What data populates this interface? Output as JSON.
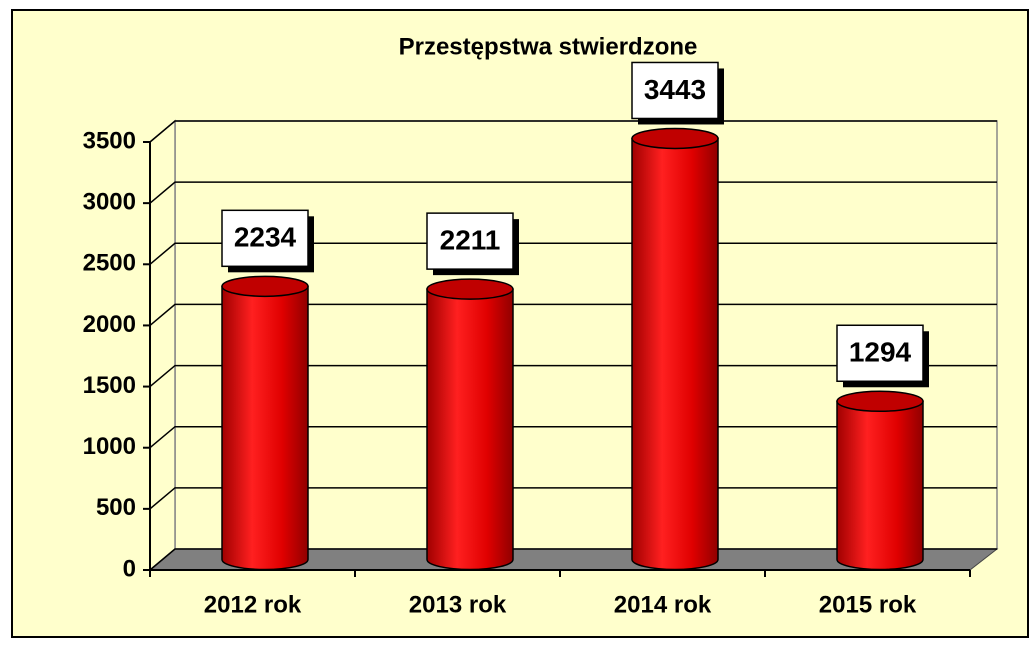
{
  "chart_data": {
    "type": "bar",
    "title": "Przestępstwa stwierdzone",
    "categories": [
      "2012 rok",
      "2013 rok",
      "2014 rok",
      "2015 rok"
    ],
    "values": [
      2234,
      2211,
      3443,
      1294
    ],
    "color": "#ff0000",
    "ylim": [
      0,
      3500
    ],
    "yticks": [
      0,
      500,
      1000,
      1500,
      2000,
      2500,
      3000,
      3500
    ],
    "grid": true
  }
}
